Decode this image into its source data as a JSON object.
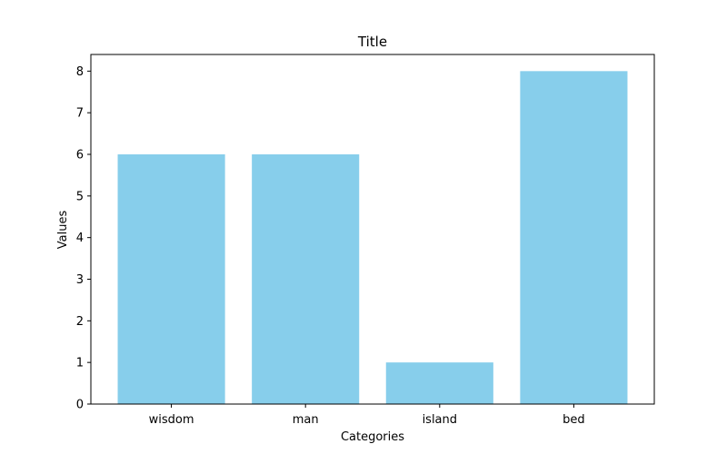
{
  "chart_data": {
    "type": "bar",
    "title": "Title",
    "xlabel": "Categories",
    "ylabel": "Values",
    "categories": [
      "wisdom",
      "man",
      "island",
      "bed"
    ],
    "values": [
      6,
      6,
      1,
      8
    ],
    "ylim": [
      0,
      8.4
    ],
    "yticks": [
      "0",
      "1",
      "2",
      "3",
      "4",
      "5",
      "6",
      "7",
      "8"
    ],
    "bar_color": "#87ceeb",
    "grid": false,
    "legend": "none"
  }
}
